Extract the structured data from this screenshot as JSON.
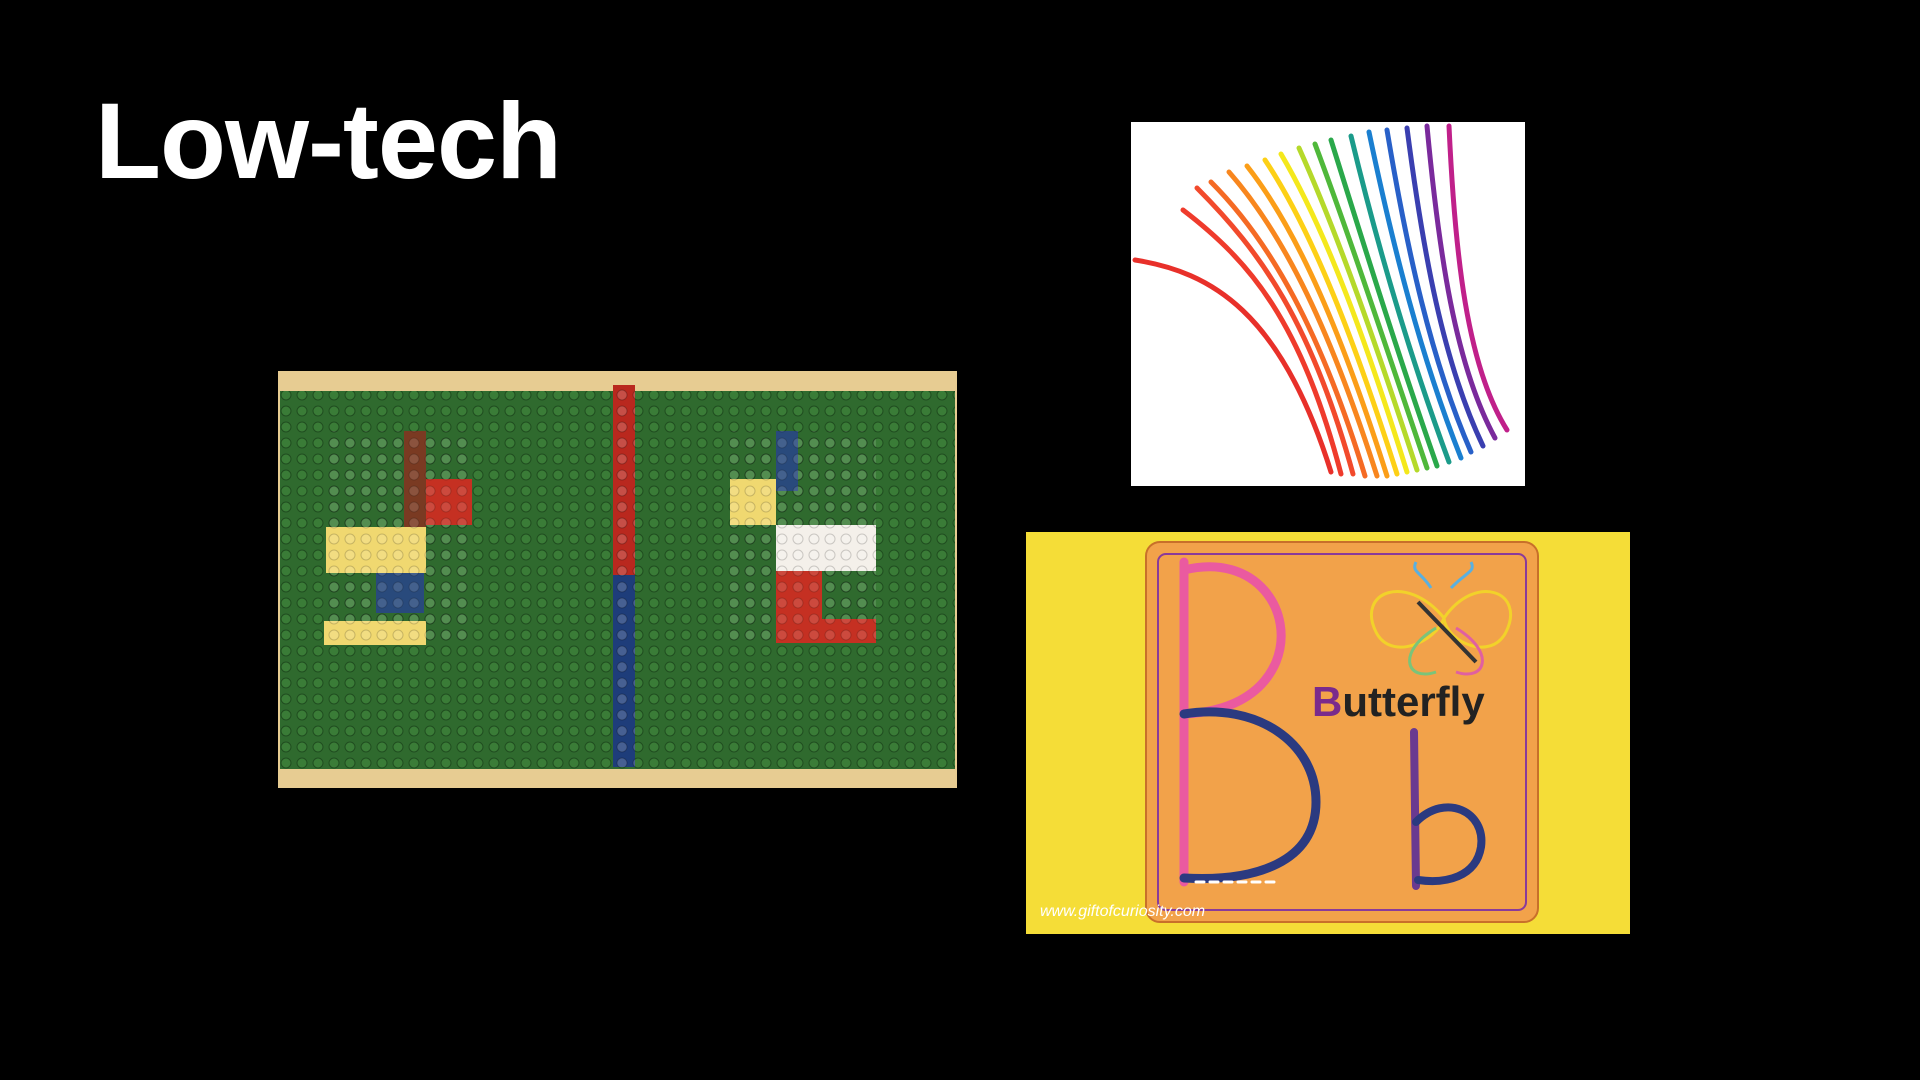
{
  "slide": {
    "title": "Low-tech",
    "background": "#000000",
    "title_color": "#ffffff"
  },
  "images": {
    "lego": {
      "description_icon": "lego-baseplate-letters-image"
    },
    "yarn": {
      "description_icon": "rainbow-wax-sticks-image"
    },
    "card": {
      "word_initial": "B",
      "word_rest": "utterfly",
      "watermark": "www.giftofcuriosity.com",
      "initial_color": "#7a2a8c",
      "word_color": "#222222"
    }
  }
}
